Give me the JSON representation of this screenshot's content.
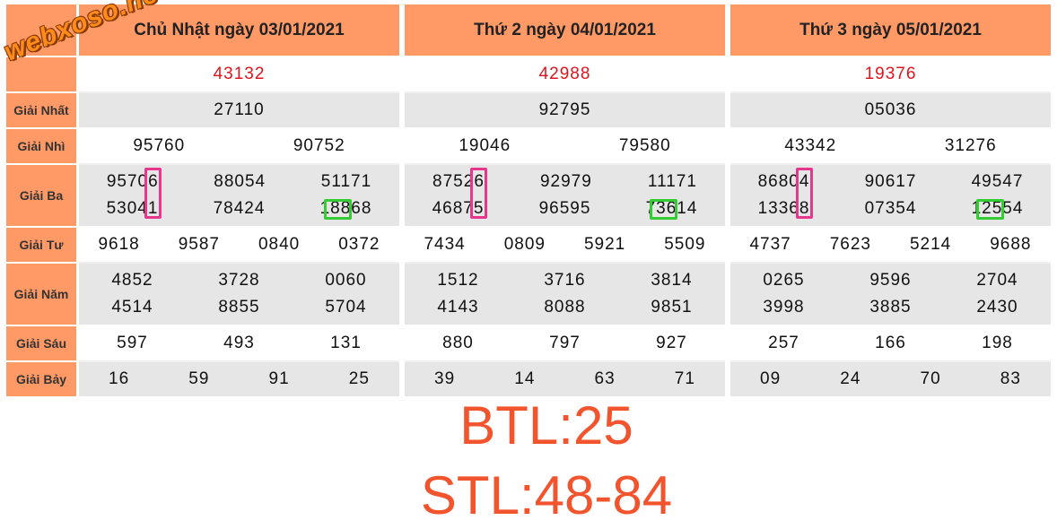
{
  "watermark": "webxoso.net",
  "labels": [
    "Giải Nhất",
    "Giải Nhì",
    "Giải Ba",
    "Giải Tư",
    "Giải Năm",
    "Giải Sáu",
    "Giải Bảy"
  ],
  "days": [
    {
      "header": "Chủ Nhật ngày 03/01/2021",
      "special": "43132",
      "nhat": "27110",
      "nhi": [
        "95760",
        "90752"
      ],
      "ba": [
        [
          "95706",
          "88054",
          "51171"
        ],
        [
          "53041",
          "78424",
          "18868"
        ]
      ],
      "tu": [
        "9618",
        "9587",
        "0840",
        "0372"
      ],
      "nam": [
        [
          "4852",
          "3728",
          "0060"
        ],
        [
          "4514",
          "8855",
          "5704"
        ]
      ],
      "sau": [
        "597",
        "493",
        "131"
      ],
      "bay": [
        "16",
        "59",
        "91",
        "25"
      ]
    },
    {
      "header": "Thứ 2 ngày 04/01/2021",
      "special": "42988",
      "nhat": "92795",
      "nhi": [
        "19046",
        "79580"
      ],
      "ba": [
        [
          "87526",
          "92979",
          "11171"
        ],
        [
          "46875",
          "96595",
          "73614"
        ]
      ],
      "tu": [
        "7434",
        "0809",
        "5921",
        "5509"
      ],
      "nam": [
        [
          "1512",
          "3716",
          "3814"
        ],
        [
          "4143",
          "8088",
          "9851"
        ]
      ],
      "sau": [
        "880",
        "797",
        "927"
      ],
      "bay": [
        "39",
        "14",
        "63",
        "71"
      ]
    },
    {
      "header": "Thứ 3 ngày 05/01/2021",
      "special": "19376",
      "nhat": "05036",
      "nhi": [
        "43342",
        "31276"
      ],
      "ba": [
        [
          "86804",
          "90617",
          "49547"
        ],
        [
          "13368",
          "07354",
          "12554"
        ]
      ],
      "tu": [
        "4737",
        "7623",
        "5214",
        "9688"
      ],
      "nam": [
        [
          "0265",
          "9596",
          "2704"
        ],
        [
          "3998",
          "3885",
          "2430"
        ]
      ],
      "sau": [
        "257",
        "166",
        "198"
      ],
      "bay": [
        "09",
        "24",
        "70",
        "83"
      ]
    }
  ],
  "btl": "BTL:25",
  "stl": "STL:48-84"
}
